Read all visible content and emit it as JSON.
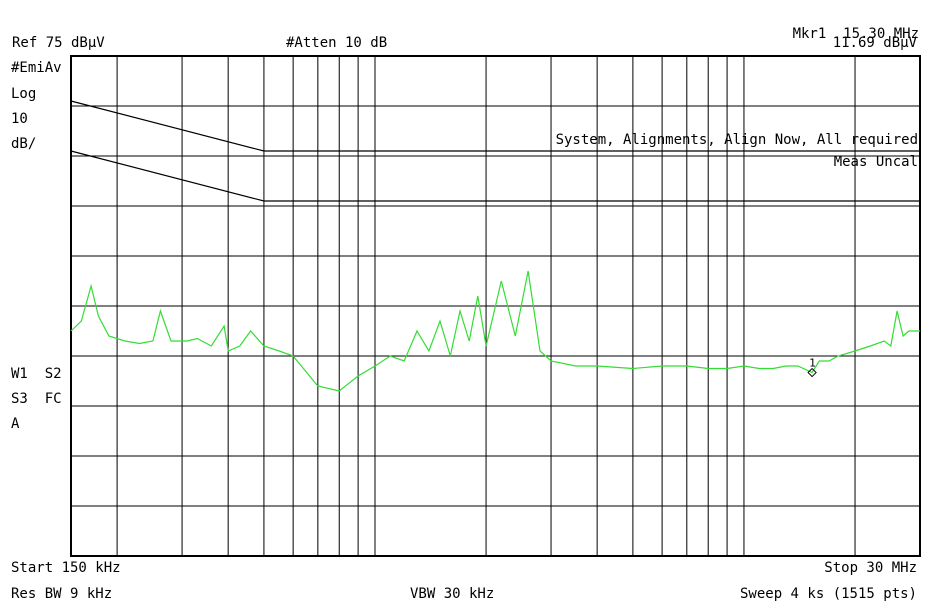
{
  "header": {
    "marker_label": "Mkr1",
    "marker_freq": "15.30 MHz",
    "marker_level": "11.69 dBµV",
    "ref_level": "Ref 75 dBµV",
    "attenuation": "#Atten 10 dB"
  },
  "side_left": {
    "detector": "#EmiAv",
    "scale_type": "Log",
    "scale_value": "10",
    "scale_unit": "dB/",
    "trace_line1": "W1  S2",
    "trace_line2": "S3  FC",
    "trace_line3": "A"
  },
  "messages": {
    "align": "System, Alignments, Align Now, All required",
    "uncal": "Meas Uncal"
  },
  "footer": {
    "start": "Start 150 kHz",
    "stop": "Stop 30 MHz",
    "rbw": "Res BW 9 kHz",
    "vbw": "VBW 30 kHz",
    "sweep": "Sweep 4 ks (1515 pts)"
  },
  "colors": {
    "trace": "#33dd33",
    "grid": "#000000",
    "background": "#ffffff"
  },
  "chart_data": {
    "type": "line",
    "x_scale": "log",
    "xlim_mhz": [
      0.15,
      30
    ],
    "ylim_dbuv": [
      -25,
      75
    ],
    "grid": true,
    "limit_lines": [
      {
        "points": [
          [
            0.15,
            66
          ],
          [
            0.5,
            56
          ],
          [
            30,
            56
          ]
        ]
      },
      {
        "points": [
          [
            0.15,
            56
          ],
          [
            0.5,
            46
          ],
          [
            5,
            46
          ],
          [
            30,
            46
          ]
        ]
      }
    ],
    "marker": {
      "label": "1",
      "x_mhz": 15.3,
      "y_dbuv": 11.69
    },
    "trace": {
      "x_mhz": [
        0.15,
        0.16,
        0.17,
        0.178,
        0.19,
        0.21,
        0.23,
        0.25,
        0.262,
        0.28,
        0.31,
        0.33,
        0.36,
        0.39,
        0.4,
        0.43,
        0.46,
        0.5,
        0.55,
        0.6,
        0.7,
        0.8,
        0.9,
        1.0,
        1.1,
        1.2,
        1.3,
        1.4,
        1.5,
        1.6,
        1.7,
        1.8,
        1.9,
        2.0,
        2.2,
        2.4,
        2.6,
        2.8,
        3.0,
        3.5,
        4.0,
        5.0,
        6.0,
        7.0,
        8.0,
        9.0,
        10.0,
        11.0,
        12.0,
        13.0,
        14.0,
        15.3,
        16.0,
        17.0,
        18.0,
        20.0,
        22.0,
        24.0,
        25.0,
        26.0,
        27.0,
        28.0,
        30.0
      ],
      "y_dbuv": [
        20,
        22,
        29,
        23,
        19,
        18,
        17.5,
        18,
        24,
        18,
        18,
        18.5,
        17,
        21,
        16,
        17,
        20,
        17,
        16,
        15,
        9,
        8,
        11,
        13,
        15,
        14,
        20,
        16,
        22,
        15,
        24,
        18,
        27,
        17,
        30,
        19,
        32,
        16,
        14,
        13,
        13,
        12.5,
        13,
        13,
        12.5,
        12.5,
        13,
        12.5,
        12.5,
        13,
        13,
        11.7,
        14,
        14,
        15,
        16,
        17,
        18,
        17,
        24,
        19,
        20,
        20
      ]
    }
  }
}
